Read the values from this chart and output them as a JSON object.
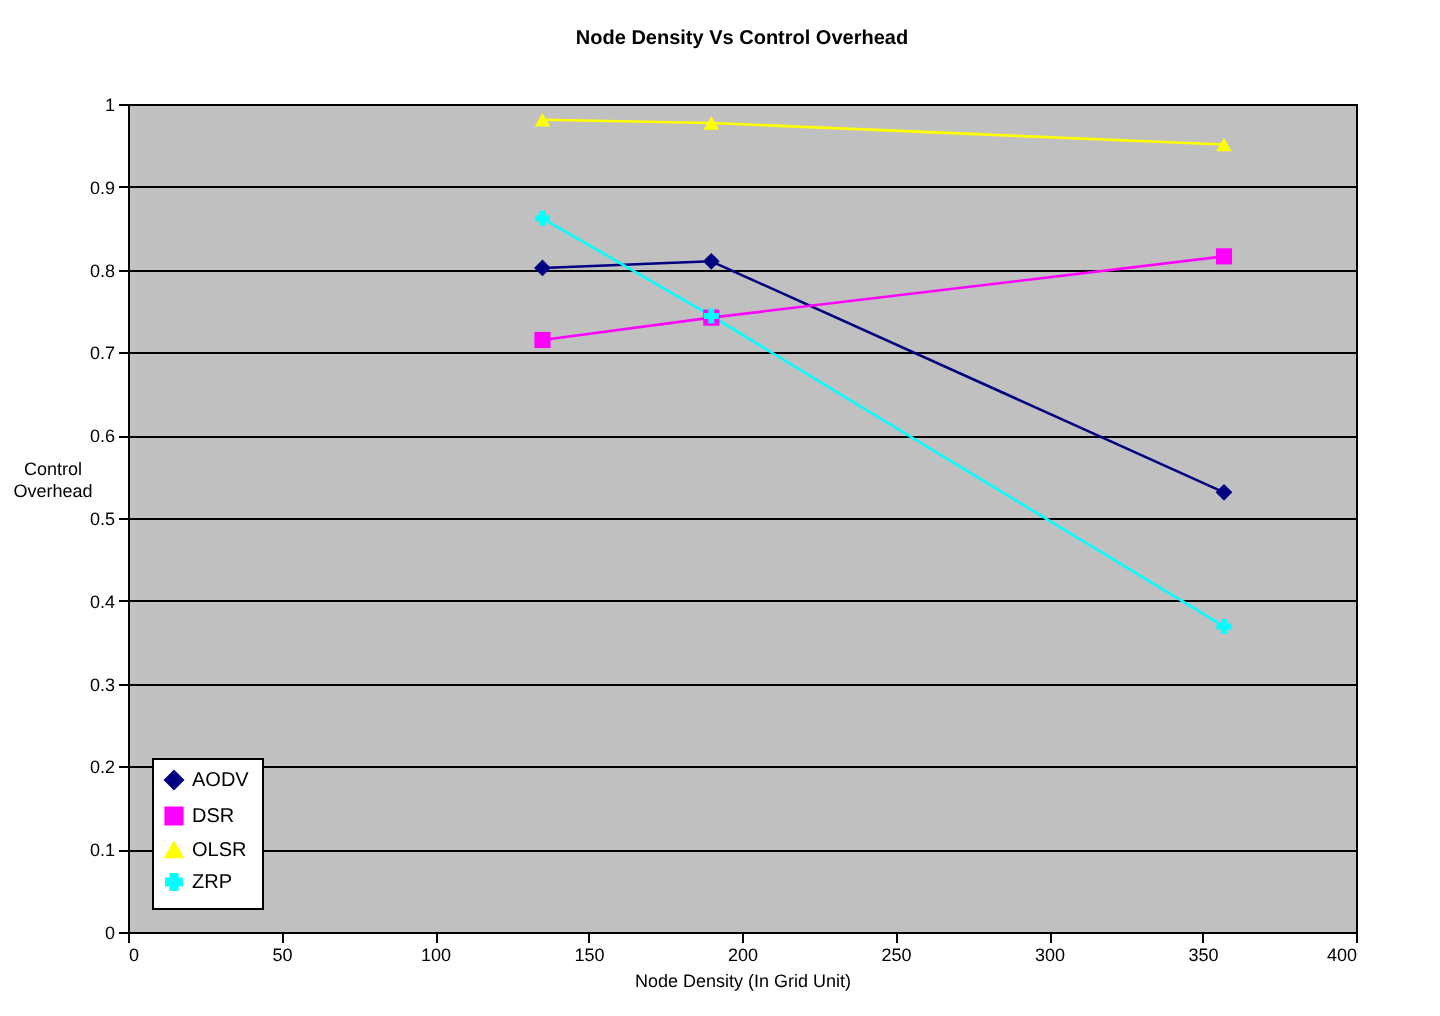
{
  "chart_data": {
    "type": "line",
    "title": "Node Density Vs Control Overhead",
    "xlabel": "Node Density (In Grid Unit)",
    "ylabel": "Control Overhead",
    "x": [
      135,
      190,
      357
    ],
    "series": [
      {
        "name": "AODV",
        "color": "#000080",
        "marker": "diamond",
        "values": [
          0.802,
          0.81,
          0.531
        ]
      },
      {
        "name": "DSR",
        "color": "#ff00ff",
        "marker": "square",
        "values": [
          0.715,
          0.742,
          0.816
        ]
      },
      {
        "name": "OLSR",
        "color": "#ffff00",
        "marker": "triangle",
        "values": [
          0.981,
          0.977,
          0.951
        ]
      },
      {
        "name": "ZRP",
        "color": "#00ffff",
        "marker": "cross",
        "values": [
          0.862,
          0.744,
          0.369
        ]
      }
    ],
    "xlim": [
      0,
      400
    ],
    "xticks": [
      0,
      50,
      100,
      150,
      200,
      250,
      300,
      350,
      400
    ],
    "ylim": [
      0,
      1
    ],
    "yticks": [
      0,
      0.1,
      0.2,
      0.3,
      0.4,
      0.5,
      0.6,
      0.7,
      0.8,
      0.9,
      1
    ],
    "grid": "y",
    "legend": "bottom left",
    "line_style": "solid"
  }
}
